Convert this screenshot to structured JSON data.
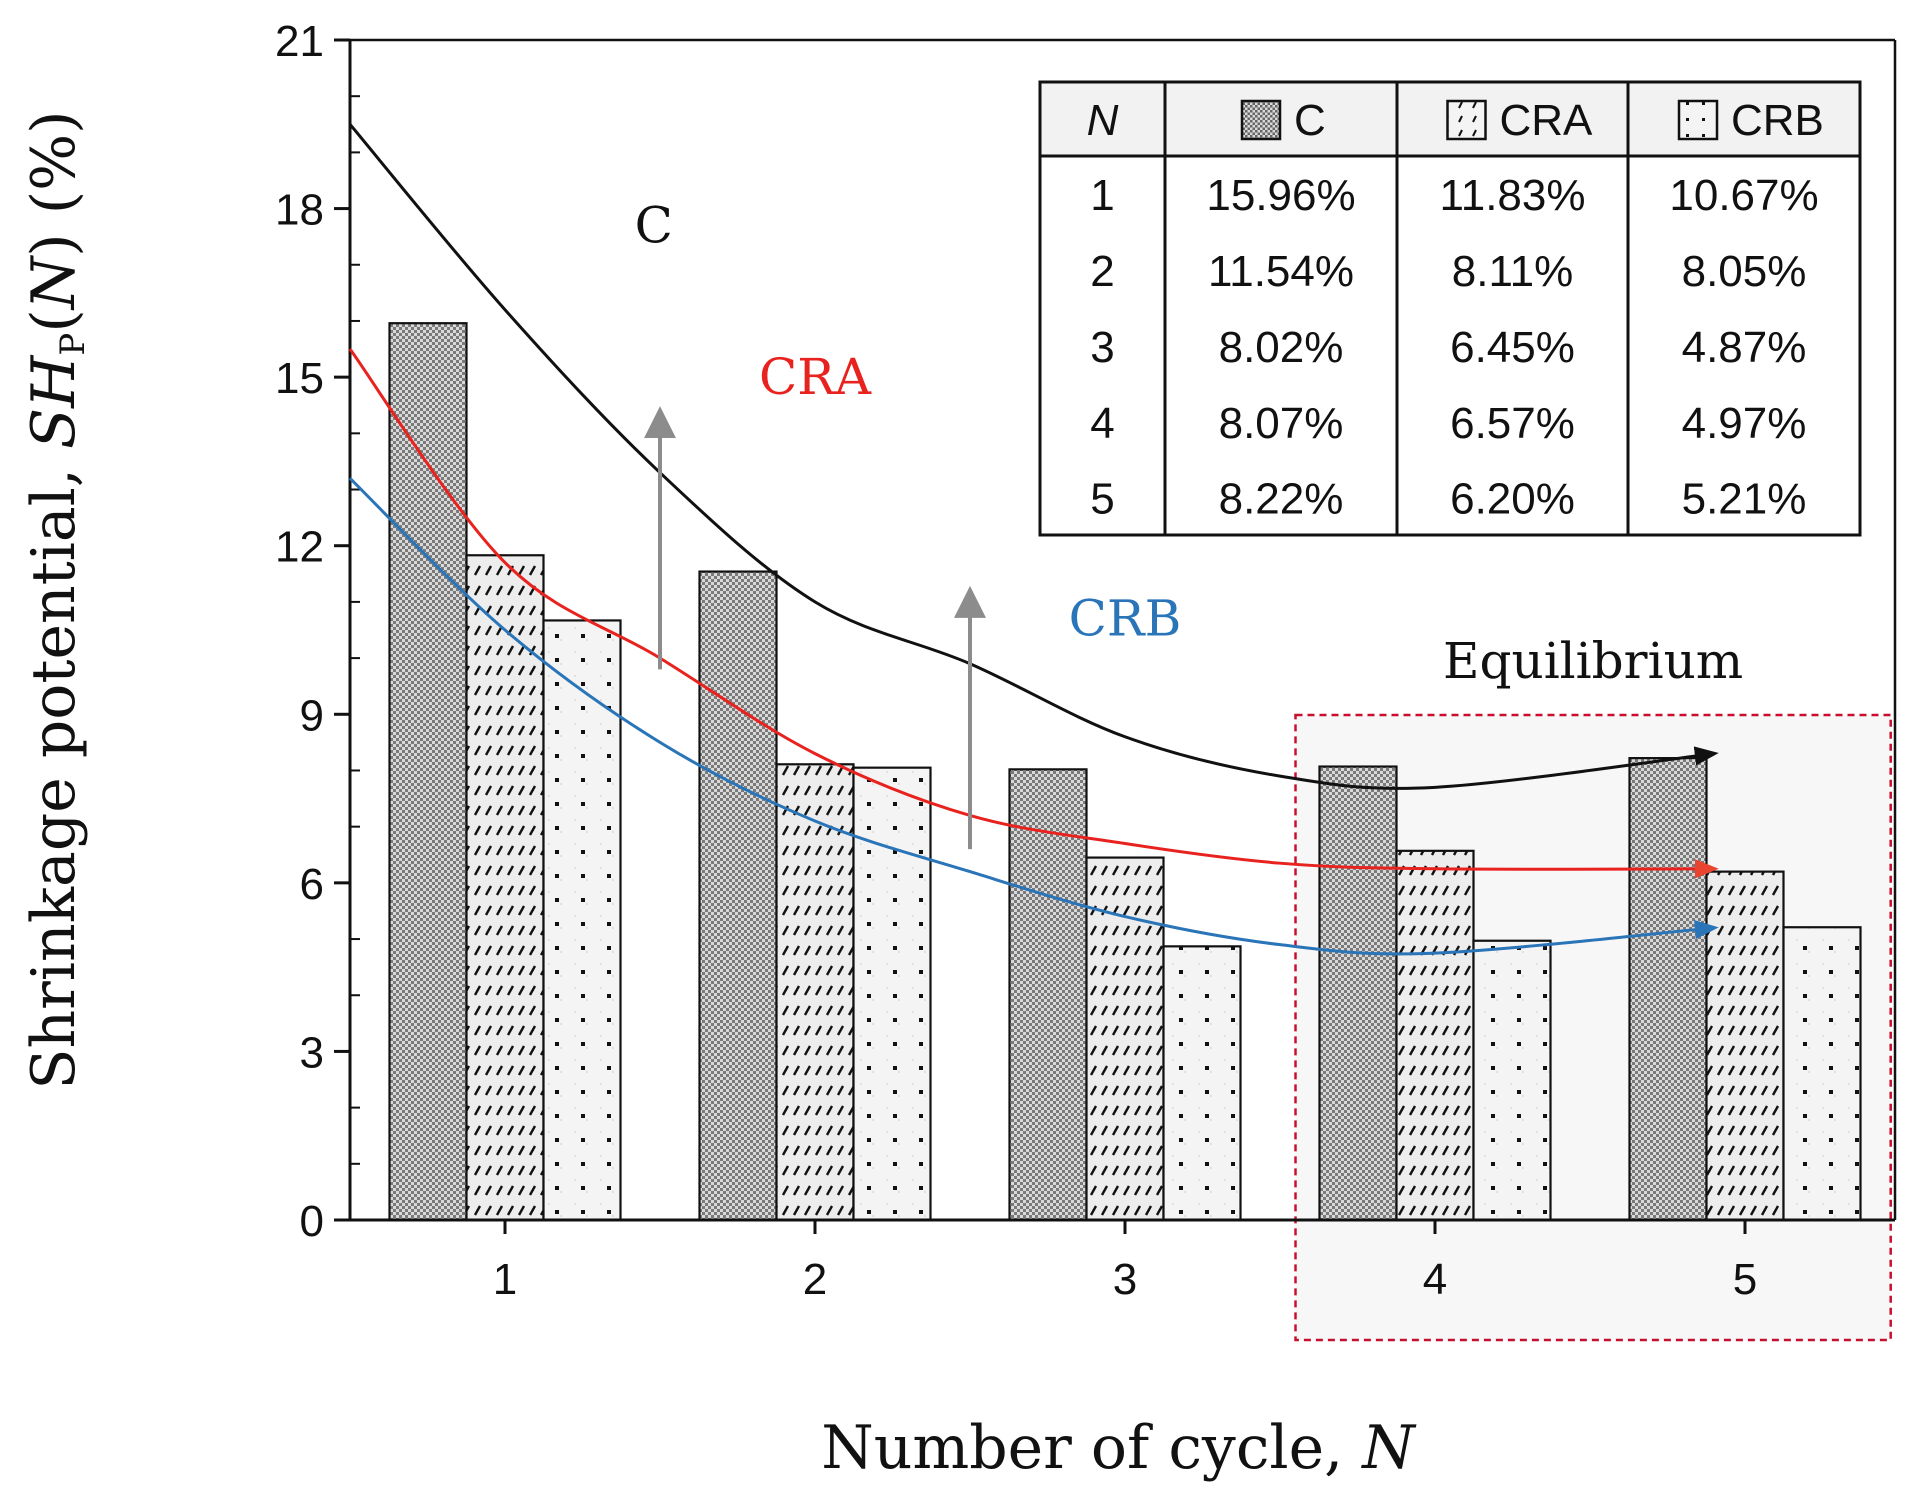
{
  "chart_data": {
    "type": "bar",
    "categories": [
      "1",
      "2",
      "3",
      "4",
      "5"
    ],
    "series": [
      {
        "name": "C",
        "values": [
          15.96,
          11.54,
          8.02,
          8.07,
          8.22
        ],
        "pattern": "checker"
      },
      {
        "name": "CRA",
        "values": [
          11.83,
          8.11,
          6.45,
          6.57,
          6.2
        ],
        "pattern": "hatch"
      },
      {
        "name": "CRB",
        "values": [
          10.67,
          8.05,
          4.87,
          4.97,
          5.21
        ],
        "pattern": "dots"
      }
    ],
    "trend_lines": [
      {
        "name": "C",
        "label": "C",
        "color": "#111111",
        "values": [
          19.5,
          16.2,
          13.3,
          11.0,
          9.9,
          8.6,
          7.9,
          7.7,
          8.3
        ]
      },
      {
        "name": "CRA",
        "label": "CRA",
        "color": "#e8231f",
        "values": [
          15.5,
          11.7,
          10.0,
          8.3,
          7.2,
          6.7,
          6.35,
          6.25,
          6.25
        ]
      },
      {
        "name": "CRB",
        "label": "CRB",
        "color": "#2a74b8",
        "values": [
          13.2,
          10.5,
          8.5,
          7.1,
          6.2,
          5.4,
          4.9,
          4.75,
          5.2
        ]
      }
    ],
    "trend_x": [
      0.5,
      1.0,
      1.5,
      2.0,
      2.5,
      3.0,
      3.5,
      4.0,
      4.9
    ],
    "arrows": [
      {
        "x": 1.5,
        "from": 9.8,
        "to": 14.2
      },
      {
        "x": 2.5,
        "from": 6.6,
        "to": 11.0
      }
    ],
    "ylim": [
      0,
      21
    ],
    "yticks": [
      0,
      3,
      6,
      9,
      12,
      15,
      18,
      21
    ],
    "xlim": [
      0.5,
      5.5
    ],
    "ylabel_main": "Shrinkage potential, ",
    "ylabel_sym": "SH",
    "ylabel_sub": "P",
    "ylabel_paren": "(",
    "ylabel_var": "N",
    "ylabel_end": ") (%)",
    "xlabel_main": "Number of cycle, ",
    "xlabel_var": "N",
    "equilibrium_label": "Equilibrium",
    "table": {
      "headers": [
        "N",
        "C",
        "CRA",
        "CRB"
      ],
      "rows": [
        [
          "1",
          "15.96%",
          "11.83%",
          "10.67%"
        ],
        [
          "2",
          "11.54%",
          "8.11%",
          "8.05%"
        ],
        [
          "3",
          "8.02%",
          "6.45%",
          "4.87%"
        ],
        [
          "4",
          "8.07%",
          "6.57%",
          "4.97%"
        ],
        [
          "5",
          "8.22%",
          "6.20%",
          "5.21%"
        ]
      ]
    }
  }
}
